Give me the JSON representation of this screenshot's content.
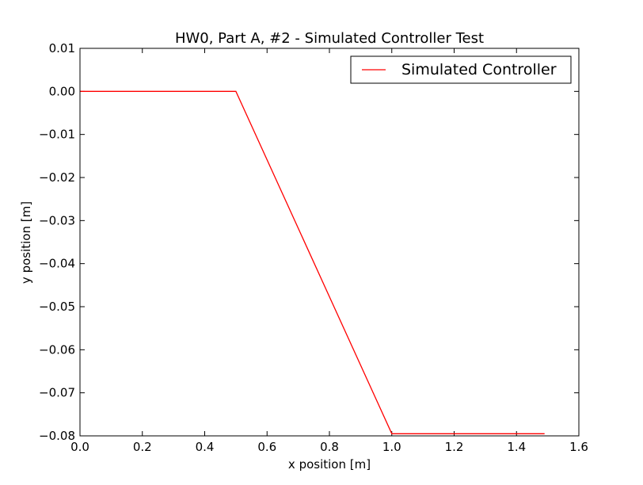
{
  "chart_data": {
    "type": "line",
    "title": "HW0, Part A, #2 - Simulated Controller Test",
    "xlabel": "x position [m]",
    "ylabel": "y position [m]",
    "xlim": [
      0.0,
      1.6
    ],
    "ylim": [
      -0.08,
      0.01
    ],
    "xticks": [
      0.0,
      0.2,
      0.4,
      0.6,
      0.8,
      1.0,
      1.2,
      1.4,
      1.6
    ],
    "xtick_labels": [
      "0.0",
      "0.2",
      "0.4",
      "0.6",
      "0.8",
      "1.0",
      "1.2",
      "1.4",
      "1.6"
    ],
    "yticks": [
      0.01,
      0.0,
      -0.01,
      -0.02,
      -0.03,
      -0.04,
      -0.05,
      -0.06,
      -0.07,
      -0.08
    ],
    "ytick_labels": [
      "0.01",
      "0.00",
      "−0.01",
      "−0.02",
      "−0.03",
      "−0.04",
      "−0.05",
      "−0.06",
      "−0.07",
      "−0.08"
    ],
    "grid": false,
    "legend": {
      "position": "top-right"
    },
    "series": [
      {
        "name": "Simulated Controller",
        "color": "#ff0000",
        "x": [
          0.0,
          0.5,
          1.0,
          1.49
        ],
        "y": [
          0.0,
          0.0,
          -0.0795,
          -0.0795
        ]
      }
    ]
  }
}
